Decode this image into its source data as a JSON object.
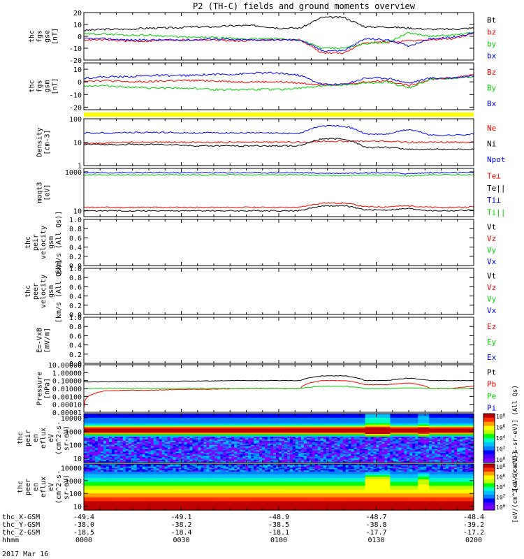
{
  "title": "P2 (TH-C) fields and ground moments overview",
  "date_label": "2017 Mar 16",
  "colors": {
    "black": "#000000",
    "red": "#ff0000",
    "green": "#00d000",
    "blue": "#0000ff",
    "yellow": "#ffff00"
  },
  "chart_data": [
    {
      "type": "line",
      "ylabel_lines": [
        "thc",
        "fgs",
        "gse",
        "[nT]"
      ],
      "yticks": [
        "20",
        "10",
        "0",
        "-10",
        "-20"
      ],
      "ylim": [
        -20,
        20
      ],
      "legend": [
        {
          "text": "Bt",
          "color": "#000000"
        },
        {
          "text": "bz",
          "color": "#ff0000"
        },
        {
          "text": "by",
          "color": "#00d000"
        },
        {
          "text": "bx",
          "color": "#0000ff"
        }
      ],
      "series": [
        {
          "name": "Bt",
          "color": "#000000",
          "values": [
            5,
            6,
            6,
            7,
            7,
            8,
            8,
            9,
            9,
            7,
            7,
            16,
            16,
            8,
            8,
            7,
            6,
            6,
            7
          ]
        },
        {
          "name": "bz",
          "color": "#ff0000",
          "values": [
            -3,
            -3,
            -4,
            -4,
            -3,
            -3,
            -3,
            -4,
            -3,
            -3,
            -3,
            -14,
            -14,
            -5,
            -5,
            -4,
            -3,
            -2,
            2
          ]
        },
        {
          "name": "by",
          "color": "#00d000",
          "values": [
            2,
            2,
            1,
            1,
            0,
            -1,
            -1,
            -2,
            -2,
            -2,
            -3,
            -10,
            -10,
            -6,
            -5,
            3,
            0,
            1,
            3
          ]
        },
        {
          "name": "bx",
          "color": "#0000ff",
          "values": [
            -2,
            -2,
            -3,
            -3,
            -3,
            -3,
            -2,
            -3,
            -3,
            -3,
            -3,
            -12,
            -12,
            -2,
            -3,
            -8,
            -2,
            -1,
            3
          ]
        }
      ]
    },
    {
      "type": "line",
      "ylabel_lines": [
        "thc",
        "fgs",
        "gsm",
        "[nT]"
      ],
      "yticks": [
        "10",
        "0",
        "-10",
        "-20"
      ],
      "ylim": [
        -22,
        15
      ],
      "legend": [
        {
          "text": "Bz",
          "color": "#ff0000"
        },
        {
          "text": "By",
          "color": "#00d000"
        },
        {
          "text": "Bx",
          "color": "#0000ff"
        }
      ],
      "series": [
        {
          "name": "Bz",
          "color": "#ff0000",
          "values": [
            1,
            1,
            0,
            0,
            1,
            1,
            1,
            0,
            0,
            0,
            -1,
            -2,
            -2,
            0,
            1,
            -3,
            2,
            3,
            6
          ]
        },
        {
          "name": "By",
          "color": "#00d000",
          "values": [
            -3,
            -3,
            -4,
            -5,
            -5,
            -5,
            -6,
            -6,
            -6,
            -6,
            -5,
            -3,
            -3,
            -1,
            0,
            -5,
            2,
            3,
            4
          ]
        },
        {
          "name": "Bx",
          "color": "#0000ff",
          "values": [
            3,
            4,
            4,
            5,
            5,
            5,
            6,
            6,
            7,
            7,
            5,
            -2,
            -2,
            3,
            3,
            -1,
            3,
            3,
            5
          ]
        }
      ]
    },
    {
      "type": "line",
      "scale": "log",
      "ylabel_lines": [
        "Density",
        "[cm-3]"
      ],
      "yticks": [
        "100",
        "10",
        "1"
      ],
      "ylim": [
        1,
        100
      ],
      "legend": [
        {
          "text": "Ne",
          "color": "#ff0000"
        },
        {
          "text": "Ni",
          "color": "#000000"
        },
        {
          "text": "Npot",
          "color": "#0000ff"
        }
      ],
      "series": [
        {
          "name": "Ne",
          "color": "#ff0000",
          "values": [
            9,
            9,
            10,
            10,
            10,
            10,
            10,
            10,
            10,
            10,
            10,
            11,
            11,
            11,
            11,
            10,
            10,
            10,
            10
          ]
        },
        {
          "name": "Ni",
          "color": "#000000",
          "values": [
            8,
            8,
            8,
            8,
            8,
            7,
            7,
            7,
            7,
            7,
            7,
            14,
            14,
            6,
            6,
            5,
            5,
            5,
            5
          ]
        },
        {
          "name": "Npot",
          "color": "#0000ff",
          "values": [
            25,
            25,
            26,
            26,
            26,
            25,
            25,
            25,
            25,
            24,
            24,
            50,
            50,
            22,
            22,
            35,
            20,
            20,
            22
          ]
        }
      ]
    },
    {
      "type": "line",
      "scale": "log",
      "ylabel_lines": [
        "moqt3",
        "[eV]"
      ],
      "yticks": [
        "1000",
        "10"
      ],
      "ylim": [
        5,
        1500
      ],
      "legend": [
        {
          "text": "Te⊥",
          "color": "#ff0000"
        },
        {
          "text": "Te||",
          "color": "#000000"
        },
        {
          "text": "Ti⊥",
          "color": "#0000ff"
        },
        {
          "text": "Ti||",
          "color": "#00d000"
        }
      ],
      "series": [
        {
          "name": "Te⊥",
          "color": "#ff0000",
          "values": [
            15,
            15,
            15,
            15,
            15,
            15,
            15,
            15,
            15,
            15,
            15,
            25,
            25,
            16,
            16,
            18,
            15,
            15,
            16
          ]
        },
        {
          "name": "Te||",
          "color": "#000000",
          "values": [
            10,
            10,
            10,
            10,
            10,
            10,
            10,
            10,
            10,
            10,
            10,
            18,
            18,
            11,
            11,
            13,
            10,
            10,
            11
          ]
        },
        {
          "name": "Ti⊥",
          "color": "#0000ff",
          "values": [
            900,
            900,
            900,
            900,
            900,
            900,
            900,
            900,
            900,
            900,
            900,
            850,
            850,
            900,
            900,
            800,
            900,
            900,
            900
          ]
        },
        {
          "name": "Ti||",
          "color": "#00d000",
          "values": [
            700,
            700,
            700,
            700,
            700,
            700,
            700,
            700,
            700,
            700,
            700,
            650,
            650,
            700,
            700,
            600,
            700,
            700,
            700
          ]
        }
      ]
    },
    {
      "type": "line",
      "ylabel_lines": [
        "thc",
        "peir",
        "velocity",
        "gsm",
        "[km/s (All Qs)]"
      ],
      "yticks": [
        "1.0",
        "0.8",
        "0.6",
        "0.4",
        "0.2",
        "0.0"
      ],
      "ylim": [
        0,
        1
      ],
      "legend": [
        {
          "text": "Vt",
          "color": "#000000"
        },
        {
          "text": "Vz",
          "color": "#ff0000"
        },
        {
          "text": "Vy",
          "color": "#00d000"
        },
        {
          "text": "Vx",
          "color": "#0000ff"
        }
      ],
      "series": []
    },
    {
      "type": "line",
      "ylabel_lines": [
        "thc",
        "peer",
        "velocity",
        "gsm",
        "[km/s (All Qs)]"
      ],
      "yticks": [
        "1.0",
        "0.8",
        "0.6",
        "0.4",
        "0.2",
        "0.0"
      ],
      "ylim": [
        0,
        1
      ],
      "legend": [
        {
          "text": "Vt",
          "color": "#000000"
        },
        {
          "text": "Vz",
          "color": "#ff0000"
        },
        {
          "text": "Vy",
          "color": "#00d000"
        },
        {
          "text": "Vx",
          "color": "#0000ff"
        }
      ],
      "series": []
    },
    {
      "type": "line",
      "ylabel_lines": [
        "E=-VxB",
        "[mV/m]"
      ],
      "yticks": [
        "1.0",
        "0.8",
        "0.6",
        "0.4",
        "0.2",
        "0.0"
      ],
      "ylim": [
        0,
        1
      ],
      "legend": [
        {
          "text": "Ez",
          "color": "#ff0000"
        },
        {
          "text": "Ey",
          "color": "#00d000"
        },
        {
          "text": "Ex",
          "color": "#0000ff"
        }
      ],
      "series": []
    },
    {
      "type": "line",
      "scale": "log",
      "ylabel_lines": [
        "Pressure",
        "[nPa]"
      ],
      "yticks": [
        "10.00000",
        "1.00000",
        "0.10000",
        "0.01000",
        "0.00100",
        "0.00010",
        "0.00001"
      ],
      "ylim": [
        1e-05,
        10
      ],
      "legend": [
        {
          "text": "Pt",
          "color": "#000000"
        },
        {
          "text": "Pb",
          "color": "#ff0000"
        },
        {
          "text": "Pe",
          "color": "#00d000"
        },
        {
          "text": "Pi",
          "color": "#0000ff"
        }
      ],
      "series": [
        {
          "name": "Pt",
          "color": "#000000",
          "values": [
            0.07,
            0.07,
            0.08,
            0.08,
            0.08,
            0.09,
            0.09,
            0.1,
            0.1,
            0.1,
            0.1,
            0.4,
            0.4,
            0.1,
            0.1,
            0.2,
            0.1,
            0.1,
            0.1
          ]
        },
        {
          "name": "Pb",
          "color": "#ff0000",
          "values": [
            3e-05,
            0.005,
            0.006,
            0.006,
            0.007,
            0.008,
            0.008,
            0.01,
            0.01,
            0.01,
            0.01,
            0.1,
            0.1,
            0.03,
            0.03,
            0.05,
            0.01,
            0.01,
            0.02
          ]
        },
        {
          "name": "Pe",
          "color": "#00d000",
          "values": [
            0.01,
            0.01,
            0.01,
            0.01,
            0.01,
            0.01,
            0.01,
            0.01,
            0.01,
            0.01,
            0.01,
            0.02,
            0.02,
            0.01,
            0.01,
            0.012,
            0.01,
            0.01,
            0.01
          ]
        }
      ]
    },
    {
      "type": "heatmap",
      "scale": "log",
      "ylabel_lines": [
        "thc",
        "peir",
        "en",
        "eflux",
        "eV",
        "(cm^2-s-",
        "sr-eV)"
      ],
      "yticks": [
        "10000",
        "1000",
        "100",
        "10"
      ],
      "ylim": [
        5,
        20000
      ],
      "colorbar": {
        "ticks": [
          "10^8",
          "10^6",
          "10^4",
          "10^2",
          "10^0"
        ],
        "label": "[eV/(cm^2-s-sr-eV)] (All Qs)"
      }
    },
    {
      "type": "heatmap",
      "scale": "log",
      "ylabel_lines": [
        "thc",
        "peer",
        "en",
        "eflux",
        "eV",
        "(cm^2-s-",
        "sr-eV)"
      ],
      "yticks": [
        "10000",
        "1000",
        "100",
        "10"
      ],
      "ylim": [
        5,
        20000
      ],
      "colorbar": {
        "ticks": [
          "10^8",
          "10^6",
          "10^4",
          "10^2",
          "10^0"
        ],
        "label": "[eV/(cm^2-s-sr-eV)]"
      }
    }
  ],
  "xaxis": {
    "row_labels": [
      "thc_X-GSM",
      "thc_Y-GSM",
      "thc_Z-GSM",
      "hhmm"
    ],
    "ticks": [
      {
        "t": 0,
        "vals": [
          "-49.4",
          "-38.0",
          "-18.5",
          "0000"
        ]
      },
      {
        "t": 30,
        "vals": [
          "-49.1",
          "-38.2",
          "-18.4",
          "0030"
        ]
      },
      {
        "t": 60,
        "vals": [
          "-48.9",
          "-38.5",
          "-18.1",
          "0100"
        ]
      },
      {
        "t": 90,
        "vals": [
          "-48.7",
          "-38.8",
          "-17.7",
          "0130"
        ]
      },
      {
        "t": 120,
        "vals": [
          "-48.4",
          "-39.2",
          "-17.2",
          "0200"
        ]
      }
    ]
  }
}
